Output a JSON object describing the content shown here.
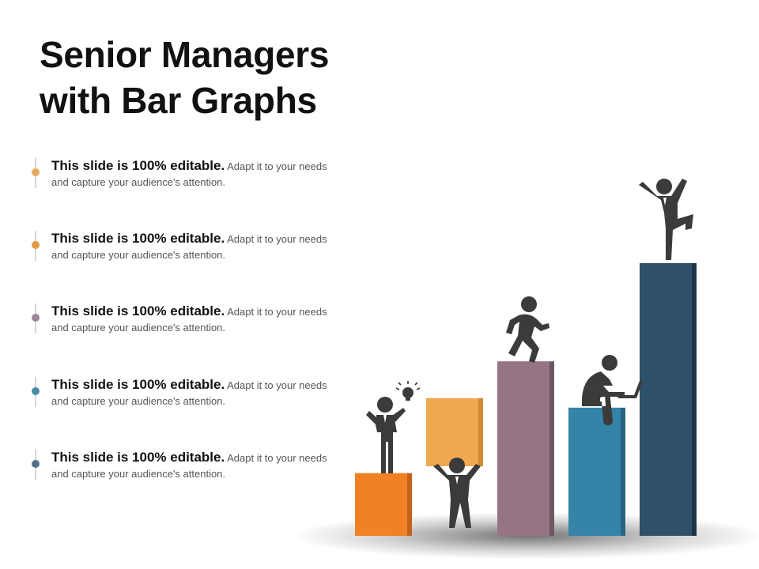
{
  "title": {
    "line1": "Senior Managers",
    "line2": "with Bar Graphs"
  },
  "items": [
    {
      "bold": "This slide is 100% editable.",
      "text": "Adapt it to your needs and capture your audience's attention.",
      "color": "#e8a85a"
    },
    {
      "bold": "This slide is 100% editable.",
      "text": "Adapt it to your needs and capture your audience's attention.",
      "color": "#e39a45"
    },
    {
      "bold": "This slide is 100% editable.",
      "text": "Adapt it to your needs and capture your audience's attention.",
      "color": "#9e8796"
    },
    {
      "bold": "This slide is 100% editable.",
      "text": "Adapt it to your needs and capture your audience's attention.",
      "color": "#4b8aa6"
    },
    {
      "bold": "This slide is 100% editable.",
      "text": "Adapt it to your needs and capture your audience's attention.",
      "color": "#4f6f8a"
    }
  ],
  "bars": [
    {
      "color": "#f08124",
      "side": "#c5621a",
      "relative_height": 0.23,
      "figure": "idea-man-icon"
    },
    {
      "color": "#f0a94e",
      "side": "#d18a36",
      "relative_height": 0.25,
      "figure": "lifting-man-icon"
    },
    {
      "color": "#957585",
      "side": "#6f5663",
      "relative_height": 0.64,
      "figure": "running-man-icon"
    },
    {
      "color": "#3683a8",
      "side": "#276582",
      "relative_height": 0.47,
      "figure": "laptop-man-icon"
    },
    {
      "color": "#2e5069",
      "side": "#1c3548",
      "relative_height": 1.0,
      "figure": "celebrating-man-icon"
    }
  ]
}
